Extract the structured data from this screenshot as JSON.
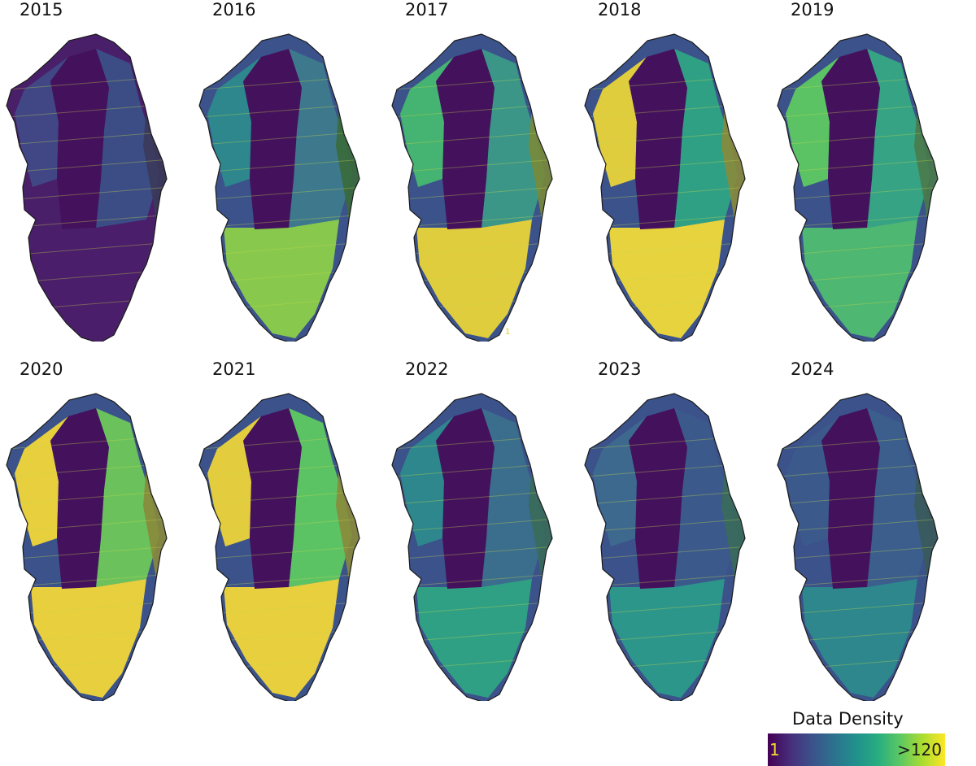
{
  "panels": [
    {
      "year": "2015",
      "base": "#4a1f6a",
      "fill": {
        "interior": "#44125c",
        "west": "#3f4a86",
        "east": "#3b5088",
        "south": "#4a1f6a",
        "coast": "#3a3a5a"
      }
    },
    {
      "year": "2016",
      "base": "#3b528b",
      "fill": {
        "interior": "#44125c",
        "west": "#2c8a8c",
        "east": "#3e7a8c",
        "south": "#8ccf4a",
        "coast": "#3a6a3a"
      }
    },
    {
      "year": "2017",
      "base": "#3b528b",
      "fill": {
        "interior": "#44125c",
        "west": "#46b870",
        "east": "#3b9a88",
        "south": "#e8d43a",
        "coast": "#7a8a3a"
      }
    },
    {
      "year": "2018",
      "base": "#3b528b",
      "fill": {
        "interior": "#44125c",
        "west": "#e8d43a",
        "east": "#2fa484",
        "south": "#f0da3a",
        "coast": "#8a8a3a"
      }
    },
    {
      "year": "2019",
      "base": "#3b528b",
      "fill": {
        "interior": "#44125c",
        "west": "#5ec962",
        "east": "#35a884",
        "south": "#4fbd70",
        "coast": "#4a7a4a"
      }
    },
    {
      "year": "2020",
      "base": "#3b528b",
      "fill": {
        "interior": "#44125c",
        "west": "#f0d63a",
        "east": "#6ec85a",
        "south": "#f0d63a",
        "coast": "#8a8a3a"
      }
    },
    {
      "year": "2021",
      "base": "#3b528b",
      "fill": {
        "interior": "#44125c",
        "west": "#ecd43a",
        "east": "#5ec962",
        "south": "#f0d63a",
        "coast": "#8a8a3a"
      }
    },
    {
      "year": "2022",
      "base": "#3b528b",
      "fill": {
        "interior": "#44125c",
        "west": "#2c8a8c",
        "east": "#3b6f8c",
        "south": "#2fa484",
        "coast": "#3a6a5a"
      }
    },
    {
      "year": "2023",
      "base": "#3b528b",
      "fill": {
        "interior": "#44125c",
        "west": "#3e6a8e",
        "east": "#3b5a8b",
        "south": "#2c9a8a",
        "coast": "#3a6a5a"
      }
    },
    {
      "year": "2024",
      "base": "#3b528b",
      "fill": {
        "interior": "#44125c",
        "west": "#3b5a8b",
        "east": "#3b5f8c",
        "south": "#2c8a8c",
        "coast": "#3a5a5a"
      }
    }
  ],
  "stray_label": "1",
  "legend": {
    "title": "Data Density",
    "min_label": "1",
    "max_label": ">120",
    "colormap": [
      "#440154",
      "#472d7b",
      "#3b528b",
      "#2c728e",
      "#21918c",
      "#28ae80",
      "#5ec962",
      "#addc30",
      "#fde725"
    ]
  }
}
